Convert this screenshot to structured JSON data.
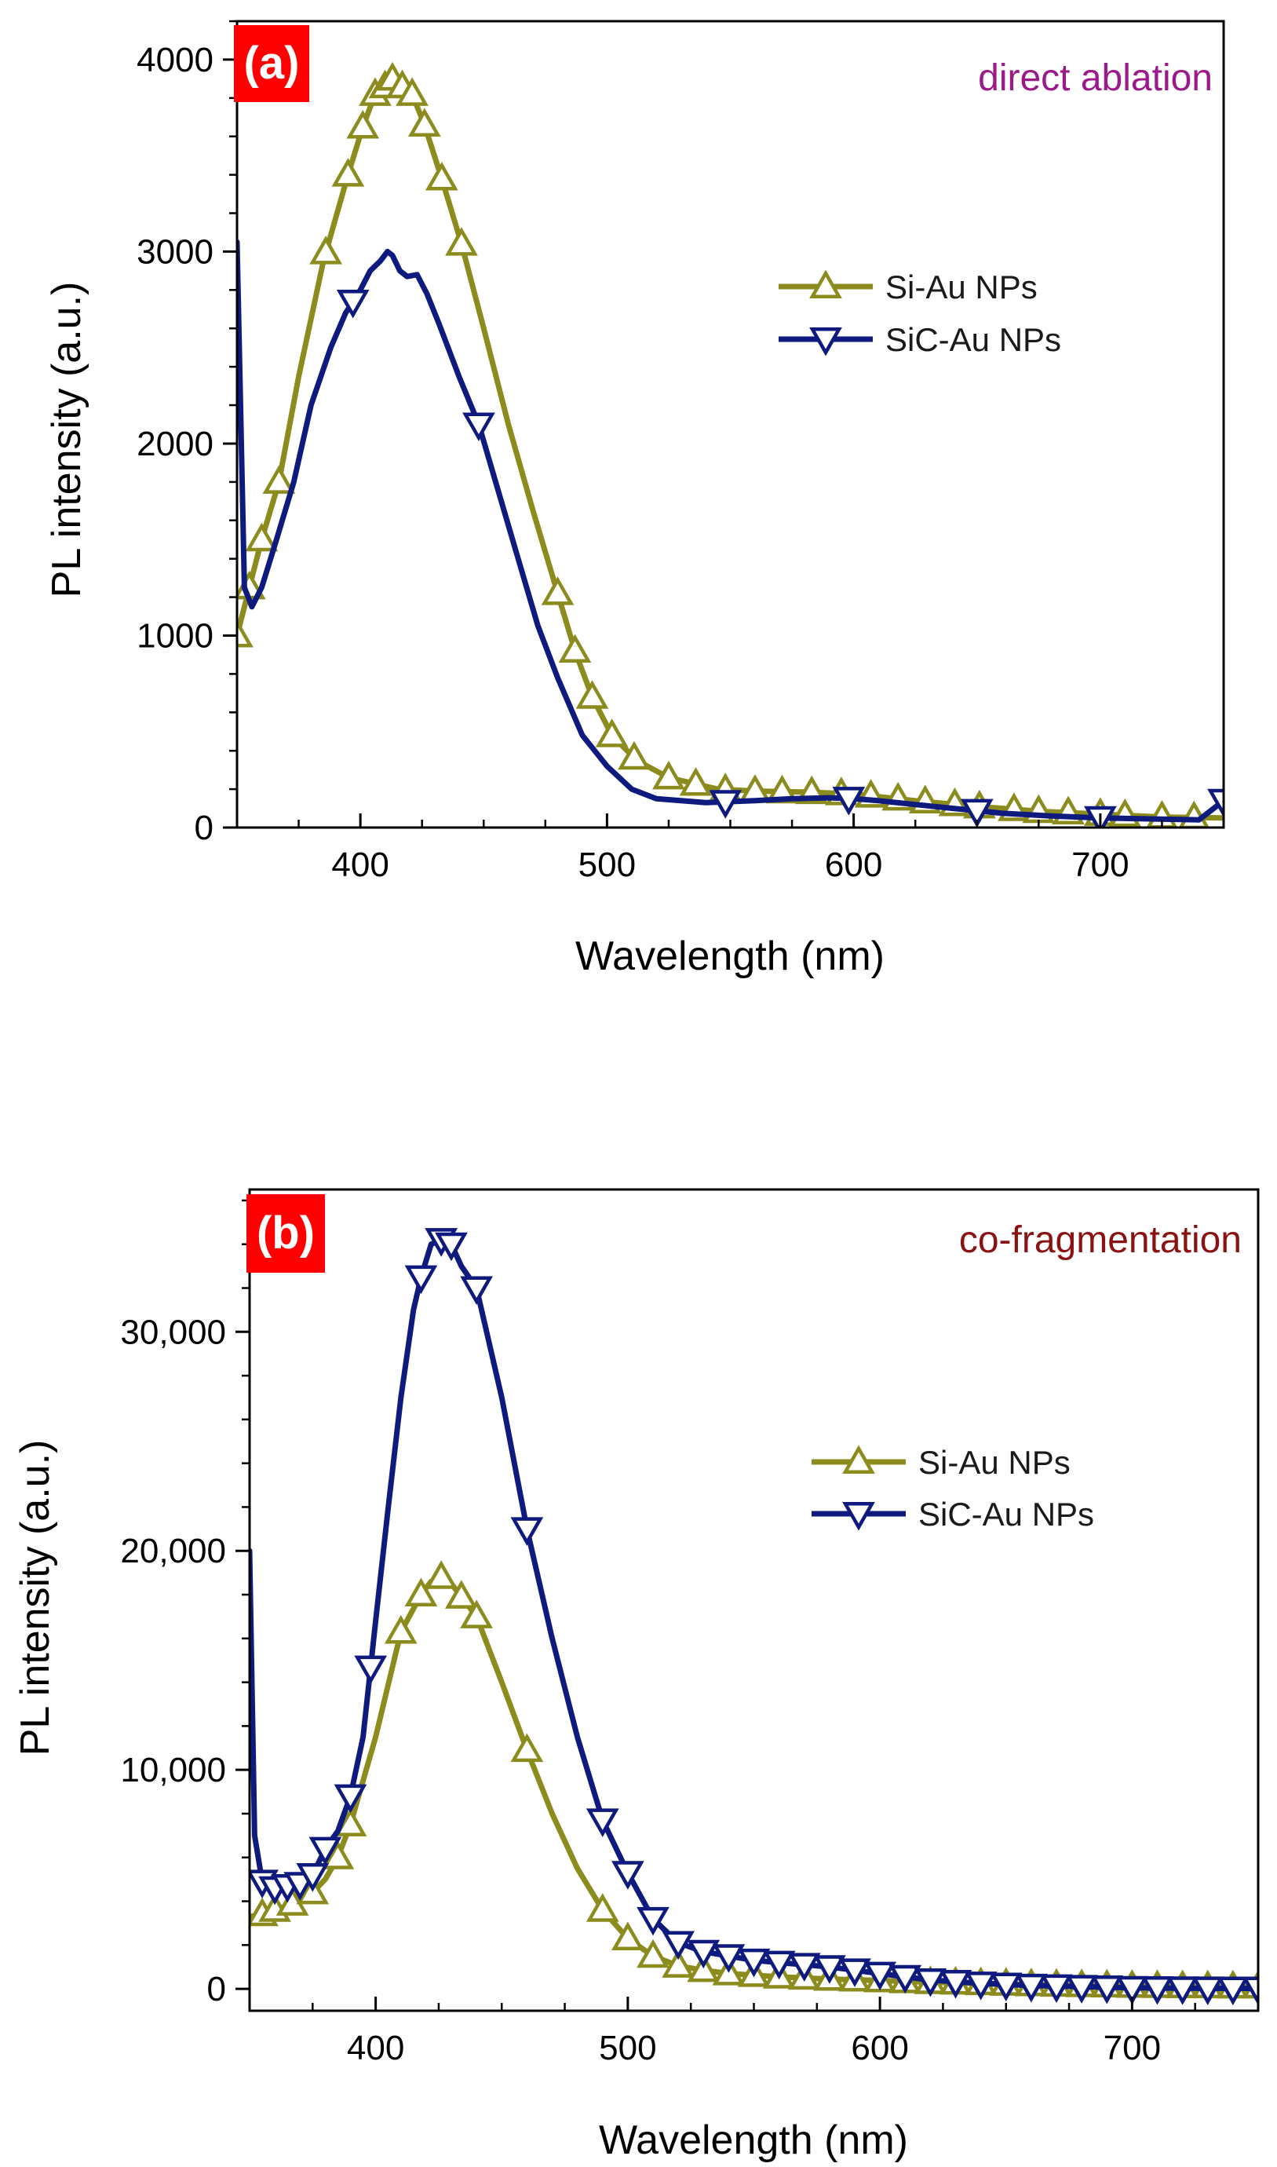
{
  "colors": {
    "si_au": "#8c8c1e",
    "sic_au": "#0f1a7e",
    "tag_bg": "#ff0000",
    "annot_a": "#9a1a8a",
    "annot_b": "#8b1212"
  },
  "chart_data": [
    {
      "type": "line",
      "panel_label": "(a)",
      "annotation": "direct ablation",
      "xlabel": "Wavelength (nm)",
      "ylabel": "PL intensity (a.u.)",
      "xlim": [
        350,
        750
      ],
      "ylim": [
        0,
        4200
      ],
      "xticks": [
        400,
        500,
        600,
        700
      ],
      "xtick_labels": [
        "400",
        "500",
        "600",
        "700"
      ],
      "yticks": [
        0,
        1000,
        2000,
        3000,
        4000
      ],
      "ytick_labels": [
        "0",
        "1000",
        "2000",
        "3000",
        "4000"
      ],
      "legend_position": "upper-right",
      "series": [
        {
          "name": "Si-Au NPs",
          "color_key": "si_au",
          "marker": "triangle-up",
          "x": [
            350,
            355,
            360,
            367,
            375,
            385,
            395,
            401,
            406,
            410,
            413,
            417,
            421,
            426,
            433,
            441,
            450,
            460,
            470,
            480,
            487,
            494,
            502,
            512,
            525,
            545,
            560,
            580,
            600,
            625,
            650,
            675,
            700,
            725,
            750
          ],
          "y": [
            1000,
            1250,
            1500,
            1800,
            2350,
            2950,
            3400,
            3650,
            3820,
            3860,
            3900,
            3860,
            3820,
            3660,
            3380,
            3040,
            2600,
            2100,
            1650,
            1220,
            920,
            680,
            480,
            350,
            260,
            200,
            190,
            185,
            175,
            140,
            110,
            85,
            70,
            55,
            50
          ],
          "marker_x": [
            350,
            355,
            360,
            367,
            386,
            395,
            401,
            406,
            410,
            413,
            417,
            421,
            426,
            433,
            441,
            480,
            487,
            494,
            502,
            511,
            525,
            536,
            548,
            560,
            571,
            583,
            595,
            607,
            618,
            629,
            641,
            651,
            665,
            675,
            687,
            700,
            710,
            725,
            738
          ]
        },
        {
          "name": "SiC-Au NPs",
          "color_key": "sic_au",
          "marker": "triangle-down",
          "x": [
            350,
            353,
            356,
            360,
            366,
            373,
            380,
            388,
            394,
            400,
            404,
            408,
            411,
            413,
            416,
            419,
            423,
            427,
            432,
            440,
            448,
            456,
            464,
            472,
            480,
            490,
            500,
            510,
            520,
            530,
            540,
            550,
            560,
            575,
            590,
            600,
            610,
            625,
            640,
            660,
            680,
            700,
            720,
            740,
            750
          ],
          "y": [
            3050,
            1250,
            1150,
            1250,
            1500,
            1800,
            2200,
            2500,
            2680,
            2800,
            2900,
            2950,
            3000,
            2980,
            2900,
            2870,
            2880,
            2780,
            2620,
            2350,
            2100,
            1750,
            1400,
            1050,
            780,
            480,
            320,
            200,
            150,
            140,
            130,
            135,
            140,
            150,
            155,
            150,
            140,
            120,
            100,
            75,
            60,
            50,
            45,
            40,
            140
          ],
          "marker_x": [
            397,
            448,
            548,
            598,
            650,
            700,
            750
          ]
        }
      ]
    },
    {
      "type": "line",
      "panel_label": "(b)",
      "annotation": "co-fragmentation",
      "xlabel": "Wavelength (nm)",
      "ylabel": "PL intensity (a.u.)",
      "xlim": [
        350,
        750
      ],
      "ylim": [
        -1000,
        36500
      ],
      "xticks": [
        400,
        500,
        600,
        700
      ],
      "xtick_labels": [
        "400",
        "500",
        "600",
        "700"
      ],
      "yticks": [
        0,
        10000,
        20000,
        30000
      ],
      "ytick_labels": [
        "0",
        "10,000",
        "20,000",
        "30,000"
      ],
      "legend_position": "center-right",
      "series": [
        {
          "name": "Si-Au NPs",
          "color_key": "si_au",
          "marker": "triangle-up",
          "x": [
            350,
            355,
            360,
            365,
            370,
            375,
            380,
            385,
            390,
            400,
            410,
            418,
            422,
            426,
            430,
            434,
            440,
            450,
            460,
            470,
            480,
            490,
            500,
            510,
            520,
            530,
            540,
            560,
            580,
            600,
            620,
            640,
            660,
            680,
            700,
            720,
            740,
            750
          ],
          "y": [
            3300,
            3400,
            3600,
            3800,
            4000,
            4400,
            5000,
            6000,
            7500,
            11500,
            16300,
            18000,
            18600,
            18800,
            18500,
            17900,
            17000,
            14000,
            10900,
            8000,
            5500,
            3600,
            2300,
            1500,
            1050,
            850,
            700,
            550,
            450,
            380,
            300,
            250,
            200,
            160,
            130,
            110,
            100,
            100
          ],
          "marker_x": [
            355,
            360,
            367,
            375,
            385,
            390,
            410,
            418,
            426,
            434,
            440,
            460,
            490,
            500,
            510,
            520,
            530,
            540,
            550,
            560,
            570,
            580,
            590,
            600,
            610,
            620,
            630,
            640,
            650,
            660,
            670,
            680,
            690,
            700,
            710,
            720,
            730,
            740,
            750
          ]
        },
        {
          "name": "SiC-Au NPs",
          "color_key": "sic_au",
          "marker": "triangle-down",
          "x": [
            350,
            352,
            355,
            360,
            365,
            370,
            375,
            380,
            385,
            390,
            395,
            400,
            405,
            410,
            415,
            418,
            422,
            426,
            430,
            434,
            440,
            450,
            460,
            470,
            480,
            490,
            500,
            510,
            520,
            530,
            540,
            550,
            560,
            580,
            600,
            620,
            640,
            660,
            680,
            700,
            720,
            740,
            750
          ],
          "y": [
            20000,
            7000,
            4900,
            4600,
            4700,
            4800,
            5200,
            6400,
            7200,
            8800,
            11500,
            16800,
            22000,
            27000,
            31000,
            32500,
            34000,
            34200,
            34000,
            33000,
            32000,
            27000,
            21000,
            16000,
            11500,
            7700,
            5300,
            3200,
            2100,
            1700,
            1500,
            1300,
            1200,
            1000,
            700,
            400,
            250,
            150,
            100,
            50,
            30,
            20,
            20
          ],
          "marker_x": [
            355,
            360,
            365,
            370,
            375,
            380,
            390,
            398,
            418,
            426,
            430,
            440,
            460,
            490,
            500,
            510,
            520,
            530,
            540,
            550,
            560,
            570,
            580,
            590,
            600,
            610,
            620,
            630,
            640,
            650,
            660,
            670,
            680,
            690,
            700,
            710,
            720,
            730,
            740,
            750
          ]
        }
      ]
    }
  ]
}
